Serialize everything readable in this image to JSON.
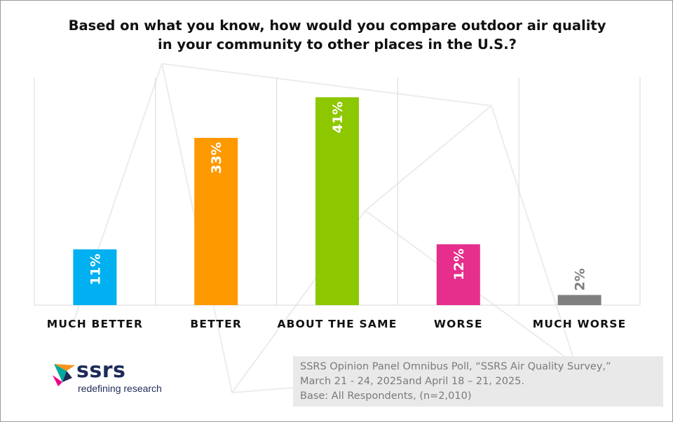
{
  "chart_data": {
    "type": "bar",
    "title": "Based on what you know, how would you compare outdoor air quality\nin your community to other places in the U.S.?",
    "categories": [
      "MUCH BETTER",
      "BETTER",
      "ABOUT THE SAME",
      "WORSE",
      "MUCH WORSE"
    ],
    "values": [
      11,
      33,
      41,
      12,
      2
    ],
    "data_labels": [
      "11%",
      "33%",
      "41%",
      "12%",
      "2%"
    ],
    "colors": [
      "#00b0f0",
      "#ff9900",
      "#8dc700",
      "#e62e8c",
      "#7f7f7f"
    ],
    "label_colors": [
      "#ffffff",
      "#ffffff",
      "#ffffff",
      "#ffffff",
      "#7f7f7f"
    ],
    "unit": "%",
    "ylim": [
      0,
      41
    ],
    "xlabel": "",
    "ylabel": "",
    "grid": false,
    "legend": "none"
  },
  "logo": {
    "wordmark": "ssrs",
    "tagline": "redefining research",
    "colors": [
      "#1d2b59",
      "#00a99d",
      "#f7941d",
      "#ec008c"
    ]
  },
  "source": {
    "lines": [
      "SSRS Opinion Panel Omnibus Poll, “SSRS Air Quality Survey,”",
      "March 21 - 24, 2025and April 18 – 21, 2025.",
      "Base: All Respondents, (n=2,010)"
    ]
  }
}
